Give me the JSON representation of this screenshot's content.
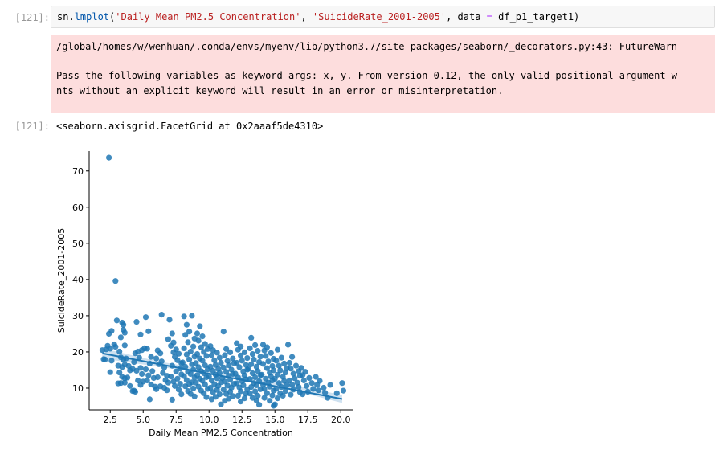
{
  "input_cell": {
    "prompt": "[121]:",
    "code_tokens": [
      "sn",
      ".",
      "lmplot",
      "(",
      "'Daily Mean PM2.5 Concentration'",
      ", ",
      "'SuicideRate_2001-2005'",
      ", data ",
      "=",
      " df_p1_target1)"
    ]
  },
  "stderr": {
    "path_line": "/global/homes/w/wenhuan/.conda/envs/myenv/lib/python3.7/site-packages/seaborn/_decorators.py:43: FutureWarn",
    "message_line1": "Pass the following variables as keyword args: x, y. From version 0.12, the only valid positional argument w",
    "message_line2": "nts without an explicit keyword will result in an error or misinterpretation."
  },
  "output_cell": {
    "prompt": "[121]:",
    "repr": "<seaborn.axisgrid.FacetGrid at 0x2aaaf5de4310>"
  },
  "colors": {
    "point": "#1f77b4",
    "ci_band": "#a6c8e3",
    "stderr_bg": "#fddddd",
    "code_bg": "#f7f7f7"
  },
  "chart_data": {
    "type": "scatter",
    "title": "",
    "xlabel": "Daily Mean PM2.5 Concentration",
    "ylabel": "SuicideRate_2001-2005",
    "xlim": [
      0.9,
      20.9
    ],
    "ylim": [
      4.0,
      75.5
    ],
    "xticks": [
      2.5,
      5.0,
      7.5,
      10.0,
      12.5,
      15.0,
      17.5,
      20.0
    ],
    "xtick_labels": [
      "2.5",
      "5.0",
      "7.5",
      "10.0",
      "12.5",
      "15.0",
      "17.5",
      "20.0"
    ],
    "yticks": [
      10,
      20,
      30,
      40,
      50,
      60,
      70
    ],
    "ytick_labels": [
      "10",
      "20",
      "30",
      "40",
      "50",
      "60",
      "70"
    ],
    "grid": false,
    "regression": {
      "x": [
        1.9,
        20.1
      ],
      "y": [
        19.6,
        7.0
      ]
    },
    "ci_band": {
      "x": [
        1.9,
        6.0,
        10.0,
        14.0,
        20.1
      ],
      "upper": [
        21.0,
        17.5,
        14.9,
        12.6,
        8.1
      ],
      "lower": [
        18.2,
        16.0,
        13.9,
        11.6,
        5.9
      ]
    },
    "points": [
      [
        2.4,
        73.7
      ],
      [
        2.9,
        39.6
      ],
      [
        2.1,
        17.9
      ],
      [
        2.3,
        21.7
      ],
      [
        2.5,
        20.9
      ],
      [
        2.4,
        25.0
      ],
      [
        2.6,
        25.8
      ],
      [
        2.2,
        20.7
      ],
      [
        2.8,
        22.1
      ],
      [
        2.6,
        17.6
      ],
      [
        2.9,
        21.4
      ],
      [
        2.5,
        14.4
      ],
      [
        3.0,
        28.7
      ],
      [
        3.4,
        28.1
      ],
      [
        3.5,
        27.5
      ],
      [
        3.5,
        26.1
      ],
      [
        3.6,
        25.3
      ],
      [
        3.3,
        24.0
      ],
      [
        3.6,
        21.8
      ],
      [
        3.2,
        20.1
      ],
      [
        3.3,
        18.5
      ],
      [
        3.5,
        17.9
      ],
      [
        3.1,
        16.2
      ],
      [
        3.4,
        15.8
      ],
      [
        3.6,
        16.5
      ],
      [
        3.2,
        14.3
      ],
      [
        3.4,
        13.1
      ],
      [
        3.6,
        12.7
      ],
      [
        3.3,
        11.4
      ],
      [
        3.1,
        11.3
      ],
      [
        3.6,
        11.5
      ],
      [
        3.8,
        12.9
      ],
      [
        3.7,
        18.2
      ],
      [
        3.9,
        16.1
      ],
      [
        4.0,
        14.9
      ],
      [
        4.2,
        15.3
      ],
      [
        4.0,
        10.6
      ],
      [
        4.4,
        9.0
      ],
      [
        4.2,
        9.2
      ],
      [
        4.5,
        28.3
      ],
      [
        4.8,
        24.8
      ],
      [
        4.4,
        19.6
      ],
      [
        4.6,
        20.1
      ],
      [
        4.9,
        20.5
      ],
      [
        4.7,
        18.4
      ],
      [
        4.3,
        17.2
      ],
      [
        4.8,
        15.6
      ],
      [
        4.5,
        14.8
      ],
      [
        4.9,
        13.9
      ],
      [
        4.6,
        12.1
      ],
      [
        4.8,
        10.9
      ],
      [
        5.0,
        11.8
      ],
      [
        5.2,
        29.6
      ],
      [
        5.4,
        25.7
      ],
      [
        5.1,
        21.0
      ],
      [
        5.3,
        20.9
      ],
      [
        5.6,
        18.6
      ],
      [
        5.5,
        16.8
      ],
      [
        5.2,
        15.2
      ],
      [
        5.7,
        14.7
      ],
      [
        5.4,
        13.5
      ],
      [
        5.8,
        12.8
      ],
      [
        5.3,
        12.1
      ],
      [
        5.6,
        11.0
      ],
      [
        5.9,
        10.4
      ],
      [
        5.5,
        6.9
      ],
      [
        6.1,
        20.4
      ],
      [
        6.3,
        19.6
      ],
      [
        6.0,
        18.2
      ],
      [
        6.4,
        17.4
      ],
      [
        6.2,
        16.6
      ],
      [
        6.6,
        15.7
      ],
      [
        6.5,
        14.2
      ],
      [
        6.8,
        13.4
      ],
      [
        6.1,
        13.0
      ],
      [
        6.7,
        12.2
      ],
      [
        6.9,
        11.5
      ],
      [
        6.3,
        10.5
      ],
      [
        6.6,
        10.1
      ],
      [
        6.8,
        9.4
      ],
      [
        6.4,
        30.3
      ],
      [
        7.0,
        28.9
      ],
      [
        7.2,
        25.1
      ],
      [
        6.9,
        23.5
      ],
      [
        7.3,
        22.6
      ],
      [
        7.1,
        21.7
      ],
      [
        7.5,
        20.7
      ],
      [
        7.3,
        19.9
      ],
      [
        7.7,
        19.5
      ],
      [
        7.4,
        18.6
      ],
      [
        7.6,
        17.7
      ],
      [
        7.9,
        16.9
      ],
      [
        7.2,
        16.2
      ],
      [
        7.8,
        15.4
      ],
      [
        7.5,
        14.6
      ],
      [
        7.9,
        13.8
      ],
      [
        7.1,
        13.2
      ],
      [
        7.6,
        12.6
      ],
      [
        7.3,
        11.8
      ],
      [
        7.8,
        11.2
      ],
      [
        7.4,
        10.6
      ],
      [
        7.7,
        9.6
      ],
      [
        7.9,
        8.3
      ],
      [
        7.2,
        6.8
      ],
      [
        8.1,
        29.8
      ],
      [
        8.3,
        27.5
      ],
      [
        8.7,
        30.0
      ],
      [
        8.5,
        25.6
      ],
      [
        8.2,
        24.7
      ],
      [
        8.9,
        23.7
      ],
      [
        8.4,
        22.7
      ],
      [
        8.8,
        21.5
      ],
      [
        8.1,
        21.0
      ],
      [
        8.6,
        20.1
      ],
      [
        8.3,
        19.3
      ],
      [
        8.9,
        18.7
      ],
      [
        8.5,
        17.9
      ],
      [
        8.0,
        17.1
      ],
      [
        8.7,
        16.6
      ],
      [
        8.2,
        15.9
      ],
      [
        8.8,
        15.1
      ],
      [
        8.4,
        14.5
      ],
      [
        8.6,
        13.9
      ],
      [
        8.1,
        13.3
      ],
      [
        8.9,
        12.9
      ],
      [
        8.3,
        12.2
      ],
      [
        8.7,
        11.6
      ],
      [
        8.5,
        11.1
      ],
      [
        8.2,
        10.5
      ],
      [
        8.8,
        9.9
      ],
      [
        8.4,
        9.2
      ],
      [
        8.6,
        8.4
      ],
      [
        8.9,
        7.7
      ],
      [
        9.1,
        25.1
      ],
      [
        9.3,
        27.1
      ],
      [
        9.5,
        24.3
      ],
      [
        9.2,
        23.1
      ],
      [
        9.7,
        22.2
      ],
      [
        9.4,
        21.3
      ],
      [
        9.9,
        20.8
      ],
      [
        9.6,
        20.0
      ],
      [
        9.1,
        19.4
      ],
      [
        9.8,
        18.9
      ],
      [
        9.3,
        18.2
      ],
      [
        9.5,
        17.6
      ],
      [
        9.0,
        16.9
      ],
      [
        9.7,
        16.3
      ],
      [
        9.2,
        15.8
      ],
      [
        9.9,
        15.2
      ],
      [
        9.4,
        14.7
      ],
      [
        9.6,
        14.1
      ],
      [
        9.1,
        13.6
      ],
      [
        9.8,
        13.0
      ],
      [
        9.3,
        12.6
      ],
      [
        9.5,
        12.0
      ],
      [
        9.0,
        11.5
      ],
      [
        9.7,
        11.0
      ],
      [
        9.2,
        10.4
      ],
      [
        9.9,
        9.8
      ],
      [
        9.4,
        9.3
      ],
      [
        9.6,
        8.6
      ],
      [
        9.8,
        7.5
      ],
      [
        10.1,
        21.6
      ],
      [
        10.3,
        20.5
      ],
      [
        10.6,
        19.8
      ],
      [
        10.2,
        19.1
      ],
      [
        10.8,
        18.4
      ],
      [
        10.4,
        17.7
      ],
      [
        10.9,
        17.0
      ],
      [
        10.5,
        16.4
      ],
      [
        10.1,
        15.9
      ],
      [
        10.7,
        15.3
      ],
      [
        10.3,
        14.8
      ],
      [
        10.8,
        14.2
      ],
      [
        10.5,
        13.7
      ],
      [
        10.0,
        13.2
      ],
      [
        10.6,
        12.7
      ],
      [
        10.2,
        12.1
      ],
      [
        10.9,
        11.6
      ],
      [
        10.4,
        11.1
      ],
      [
        10.7,
        10.6
      ],
      [
        10.1,
        10.1
      ],
      [
        10.6,
        9.5
      ],
      [
        10.3,
        8.9
      ],
      [
        10.8,
        8.3
      ],
      [
        10.5,
        7.6
      ],
      [
        10.2,
        6.9
      ],
      [
        11.1,
        25.6
      ],
      [
        11.3,
        20.8
      ],
      [
        11.6,
        19.9
      ],
      [
        11.2,
        19.1
      ],
      [
        11.8,
        18.2
      ],
      [
        11.4,
        17.5
      ],
      [
        11.9,
        16.9
      ],
      [
        11.5,
        16.3
      ],
      [
        11.1,
        15.7
      ],
      [
        11.7,
        15.1
      ],
      [
        11.3,
        14.5
      ],
      [
        11.8,
        13.9
      ],
      [
        11.5,
        13.4
      ],
      [
        11.0,
        12.8
      ],
      [
        11.6,
        12.3
      ],
      [
        11.2,
        11.8
      ],
      [
        11.9,
        11.2
      ],
      [
        11.4,
        10.7
      ],
      [
        11.7,
        10.1
      ],
      [
        11.1,
        9.6
      ],
      [
        11.6,
        9.0
      ],
      [
        11.3,
        8.4
      ],
      [
        11.8,
        7.8
      ],
      [
        11.5,
        7.1
      ],
      [
        11.2,
        6.5
      ],
      [
        10.9,
        5.5
      ],
      [
        12.1,
        22.4
      ],
      [
        12.4,
        21.5
      ],
      [
        12.2,
        20.6
      ],
      [
        12.7,
        19.9
      ],
      [
        12.4,
        19.0
      ],
      [
        12.9,
        18.3
      ],
      [
        12.5,
        17.6
      ],
      [
        12.1,
        17.0
      ],
      [
        12.8,
        16.4
      ],
      [
        12.3,
        15.8
      ],
      [
        12.9,
        15.1
      ],
      [
        12.6,
        14.6
      ],
      [
        12.0,
        14.0
      ],
      [
        12.7,
        13.5
      ],
      [
        12.2,
        12.9
      ],
      [
        12.8,
        12.4
      ],
      [
        12.5,
        11.9
      ],
      [
        12.1,
        11.3
      ],
      [
        12.6,
        10.8
      ],
      [
        12.3,
        10.2
      ],
      [
        12.9,
        9.7
      ],
      [
        12.4,
        9.1
      ],
      [
        12.8,
        8.5
      ],
      [
        12.2,
        7.9
      ],
      [
        12.7,
        7.2
      ],
      [
        12.4,
        6.3
      ],
      [
        13.2,
        23.9
      ],
      [
        13.5,
        21.9
      ],
      [
        13.1,
        21.0
      ],
      [
        13.7,
        20.3
      ],
      [
        13.3,
        19.4
      ],
      [
        13.9,
        18.7
      ],
      [
        13.4,
        17.9
      ],
      [
        13.8,
        17.2
      ],
      [
        13.2,
        16.6
      ],
      [
        13.6,
        15.9
      ],
      [
        13.0,
        15.3
      ],
      [
        13.7,
        14.7
      ],
      [
        13.3,
        14.1
      ],
      [
        13.9,
        13.6
      ],
      [
        13.5,
        13.0
      ],
      [
        13.1,
        12.5
      ],
      [
        13.8,
        11.9
      ],
      [
        13.4,
        11.4
      ],
      [
        13.6,
        10.8
      ],
      [
        13.2,
        10.3
      ],
      [
        13.9,
        9.7
      ],
      [
        13.5,
        9.1
      ],
      [
        13.1,
        8.5
      ],
      [
        13.7,
        7.9
      ],
      [
        13.3,
        7.3
      ],
      [
        13.6,
        6.6
      ],
      [
        13.8,
        5.4
      ],
      [
        14.1,
        22.0
      ],
      [
        14.4,
        21.3
      ],
      [
        14.2,
        20.4
      ],
      [
        14.7,
        19.7
      ],
      [
        14.3,
        18.9
      ],
      [
        14.9,
        18.1
      ],
      [
        14.5,
        17.4
      ],
      [
        14.1,
        16.7
      ],
      [
        14.8,
        16.1
      ],
      [
        14.4,
        15.5
      ],
      [
        14.9,
        14.9
      ],
      [
        14.6,
        14.3
      ],
      [
        14.0,
        13.7
      ],
      [
        14.7,
        13.2
      ],
      [
        14.3,
        12.6
      ],
      [
        14.8,
        12.1
      ],
      [
        14.5,
        11.5
      ],
      [
        14.1,
        11.0
      ],
      [
        14.6,
        10.4
      ],
      [
        14.2,
        9.8
      ],
      [
        14.9,
        9.3
      ],
      [
        14.4,
        8.6
      ],
      [
        14.8,
        8.0
      ],
      [
        14.2,
        7.3
      ],
      [
        14.6,
        6.5
      ],
      [
        14.9,
        5.1
      ],
      [
        15.2,
        20.6
      ],
      [
        15.5,
        18.4
      ],
      [
        15.1,
        17.6
      ],
      [
        15.7,
        16.8
      ],
      [
        15.3,
        16.2
      ],
      [
        15.9,
        15.5
      ],
      [
        15.4,
        14.9
      ],
      [
        15.8,
        14.3
      ],
      [
        15.2,
        13.7
      ],
      [
        15.6,
        13.1
      ],
      [
        15.0,
        12.6
      ],
      [
        15.7,
        12.0
      ],
      [
        15.3,
        11.4
      ],
      [
        15.9,
        10.9
      ],
      [
        15.5,
        10.3
      ],
      [
        15.1,
        9.8
      ],
      [
        15.8,
        9.2
      ],
      [
        15.4,
        8.6
      ],
      [
        15.6,
        7.9
      ],
      [
        15.2,
        7.2
      ],
      [
        15.0,
        5.5
      ],
      [
        16.0,
        22.0
      ],
      [
        16.3,
        18.6
      ],
      [
        16.1,
        17.0
      ],
      [
        16.6,
        16.2
      ],
      [
        16.2,
        15.4
      ],
      [
        16.8,
        14.7
      ],
      [
        16.4,
        14.0
      ],
      [
        16.9,
        13.4
      ],
      [
        16.5,
        12.7
      ],
      [
        16.1,
        12.1
      ],
      [
        16.7,
        11.5
      ],
      [
        16.3,
        10.9
      ],
      [
        16.8,
        10.3
      ],
      [
        16.4,
        9.6
      ],
      [
        16.9,
        8.9
      ],
      [
        16.2,
        8.2
      ],
      [
        17.0,
        15.6
      ],
      [
        17.3,
        14.5
      ],
      [
        17.1,
        13.6
      ],
      [
        17.6,
        12.8
      ],
      [
        17.2,
        12.1
      ],
      [
        17.8,
        11.4
      ],
      [
        17.4,
        10.6
      ],
      [
        17.9,
        9.8
      ],
      [
        17.5,
        9.0
      ],
      [
        17.1,
        8.3
      ],
      [
        18.1,
        13.1
      ],
      [
        18.4,
        12.0
      ],
      [
        18.2,
        10.9
      ],
      [
        18.7,
        10.1
      ],
      [
        18.3,
        9.4
      ],
      [
        18.8,
        8.7
      ],
      [
        19.2,
        10.9
      ],
      [
        19.7,
        8.6
      ],
      [
        20.1,
        11.4
      ],
      [
        20.2,
        9.3
      ],
      [
        4.3,
        9.3
      ],
      [
        6.0,
        9.7
      ],
      [
        2.0,
        18.0
      ],
      [
        1.9,
        20.5
      ],
      [
        19.0,
        7.3
      ]
    ]
  }
}
